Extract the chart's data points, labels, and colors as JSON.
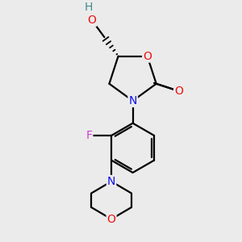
{
  "bg_color": "#ebebeb",
  "atom_colors": {
    "C": "#000000",
    "N": "#1010ee",
    "O": "#ee1111",
    "F": "#cc44cc",
    "H": "#448888"
  },
  "bond_color": "#000000",
  "bond_width": 1.6,
  "figsize": [
    3.0,
    3.0
  ],
  "dpi": 100
}
